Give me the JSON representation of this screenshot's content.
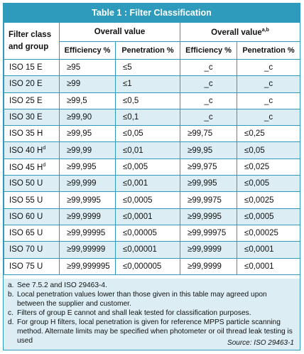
{
  "title": "Table 1 : Filter Classification",
  "headers": {
    "filter_class_line1": "Filter class",
    "filter_class_line2": "and group",
    "overall_value": "Overall value",
    "overall_value_local": "Overall value",
    "overall_value_local_sup": "a,b",
    "efficiency": "Efficiency %",
    "penetration": "Penetration %"
  },
  "rows": [
    {
      "cls": "ISO 15 E",
      "sup": "",
      "eff": "≥95",
      "pen": "≤5",
      "leff": "_c",
      "lpen": "_c"
    },
    {
      "cls": "ISO 20 E",
      "sup": "",
      "eff": "≥99",
      "pen": "≤1",
      "leff": "_c",
      "lpen": "_c"
    },
    {
      "cls": "ISO 25 E",
      "sup": "",
      "eff": "≥99,5",
      "pen": "≤0,5",
      "leff": "_c",
      "lpen": "_c"
    },
    {
      "cls": "ISO 30 E",
      "sup": "",
      "eff": "≥99,90",
      "pen": "≤0,1",
      "leff": "_c",
      "lpen": "_c"
    },
    {
      "cls": "ISO 35 H",
      "sup": "",
      "eff": "≥99,95",
      "pen": "≤0,05",
      "leff": "≥99,75",
      "lpen": "≤0,25"
    },
    {
      "cls": "ISO 40 H",
      "sup": "d",
      "eff": "≥99,99",
      "pen": "≤0,01",
      "leff": "≥99,95",
      "lpen": "≤0,05"
    },
    {
      "cls": "ISO 45 H",
      "sup": "d",
      "eff": "≥99,995",
      "pen": "≤0,005",
      "leff": "≥99,975",
      "lpen": "≤0,025"
    },
    {
      "cls": "ISO 50 U",
      "sup": "",
      "eff": "≥99,999",
      "pen": "≤0,001",
      "leff": "≥99,995",
      "lpen": "≤0,005"
    },
    {
      "cls": "ISO 55 U",
      "sup": "",
      "eff": "≥99,9995",
      "pen": "≤0,0005",
      "leff": "≥99,9975",
      "lpen": "≤0,0025"
    },
    {
      "cls": "ISO 60 U",
      "sup": "",
      "eff": "≥99,9999",
      "pen": "≤0,0001",
      "leff": "≥99,9995",
      "lpen": "≤0,0005"
    },
    {
      "cls": "ISO 65 U",
      "sup": "",
      "eff": "≥99,99995",
      "pen": "≤0,00005",
      "leff": "≥99,99975",
      "lpen": "≤0,00025"
    },
    {
      "cls": "ISO 70 U",
      "sup": "",
      "eff": "≥99,99999",
      "pen": "≤0,00001",
      "leff": "≥99,9999",
      "lpen": "≤0,0001"
    },
    {
      "cls": "ISO 75 U",
      "sup": "",
      "eff": "≥99,999995",
      "pen": "≤0,000005",
      "leff": "≥99,9999",
      "lpen": "≤0,0001"
    }
  ],
  "notes": [
    {
      "label": "a.",
      "text": "See 7.5.2 and ISO 29463-4."
    },
    {
      "label": "b.",
      "text": "Local penetration values lower than those given in this table may agreed upon between the supplier and customer."
    },
    {
      "label": "c.",
      "text": "Filters of group E cannot and shall leak tested for classification purposes."
    },
    {
      "label": "d.",
      "text": "For group H filters, local penetration is given for reference MPPS particle scanning method. Alternate limits may be specified when photometer or oil thread leak testing is used"
    }
  ],
  "source": "Source: ISO 29463-1",
  "colors": {
    "accent": "#2e9bbd",
    "band": "#dceef4"
  }
}
